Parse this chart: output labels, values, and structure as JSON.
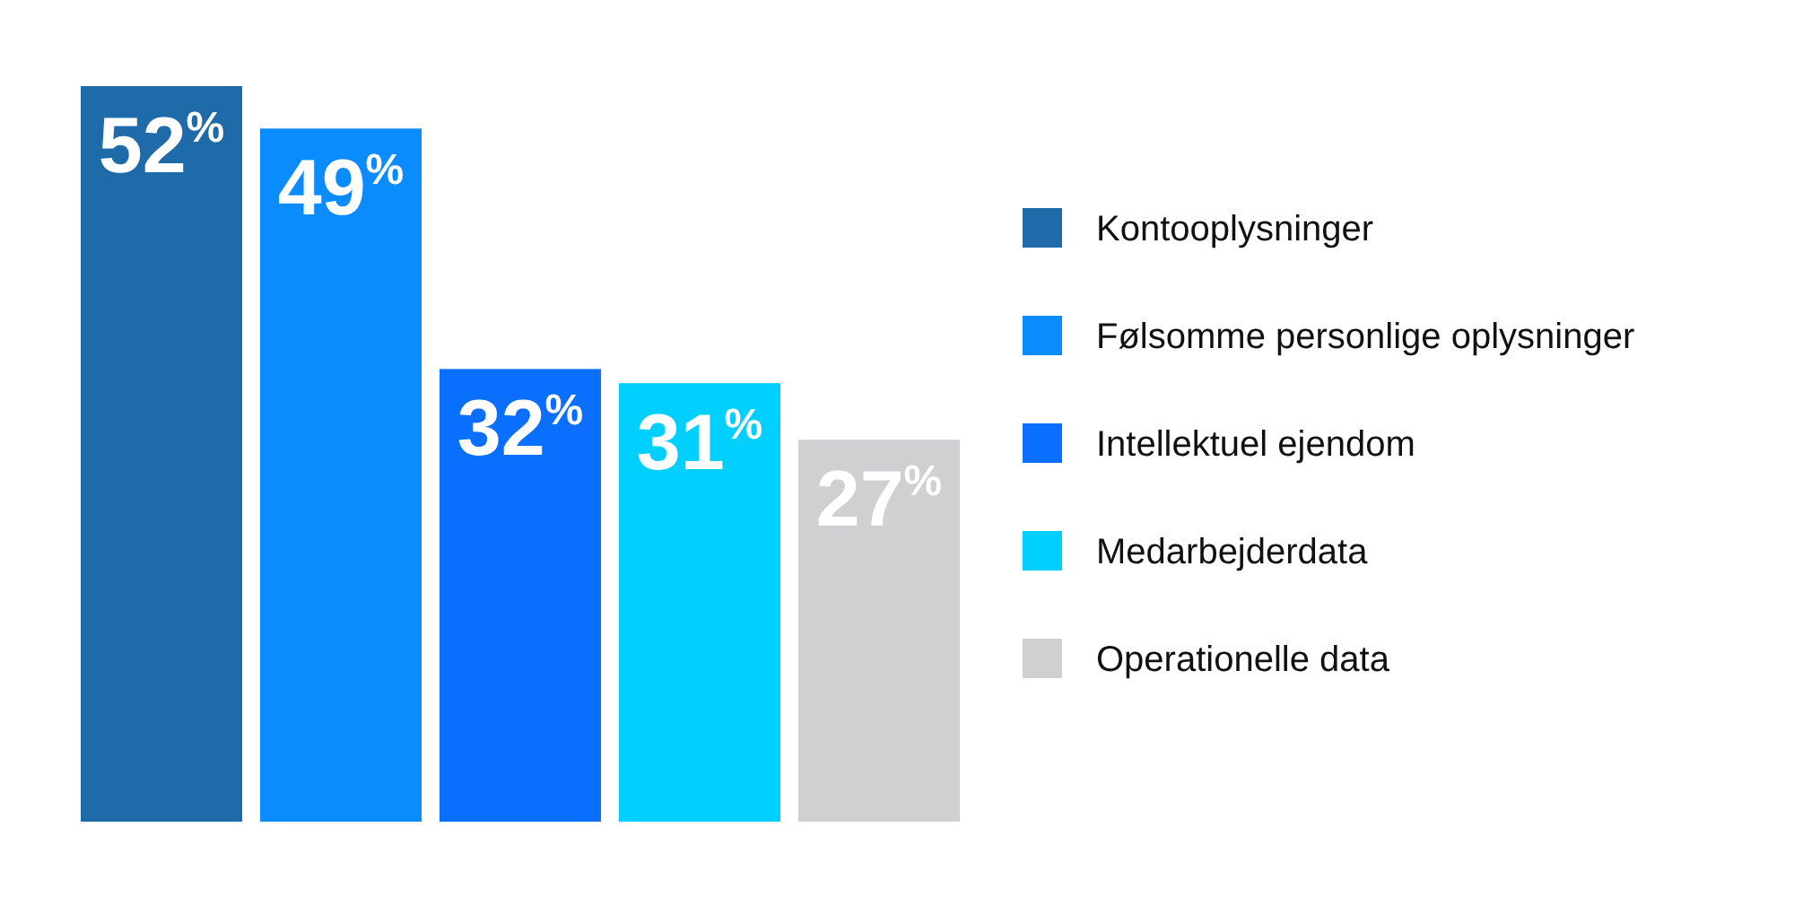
{
  "chart_data": {
    "type": "bar",
    "categories": [
      null,
      null,
      null,
      null,
      null
    ],
    "series": [
      {
        "name": "Kontooplysninger",
        "color": "#1f6aa9",
        "values": [
          52,
          null,
          null,
          null,
          null
        ],
        "value_labels": [
          "52$^{%}$",
          null,
          null,
          null,
          null
        ]
      },
      {
        "name": "Følsomme personlige oplysninger",
        "color": "#0a8cff",
        "values": [
          null,
          49,
          null,
          null,
          null
        ],
        "value_labels": [
          null,
          "49$^{%}$",
          null,
          null,
          null
        ]
      },
      {
        "name": "Intellektuel ejendom",
        "color": "#0a6eff",
        "values": [
          null,
          null,
          32,
          null,
          null
        ],
        "value_labels": [
          null,
          null,
          "32$^{%}$",
          null,
          null
        ]
      },
      {
        "name": "Medarbejderdata",
        "color": "#00cfff",
        "values": [
          null,
          null,
          null,
          31,
          null
        ],
        "value_labels": [
          null,
          null,
          null,
          "31$^{%}$",
          null
        ]
      },
      {
        "name": "Operationelle data",
        "color": "#d0cfd1",
        "values": [
          null,
          null,
          null,
          null,
          27
        ],
        "value_labels": [
          null,
          null,
          null,
          null,
          "27$^{%}$"
        ]
      }
    ],
    "stacked": true,
    "legend": "right"
  }
}
